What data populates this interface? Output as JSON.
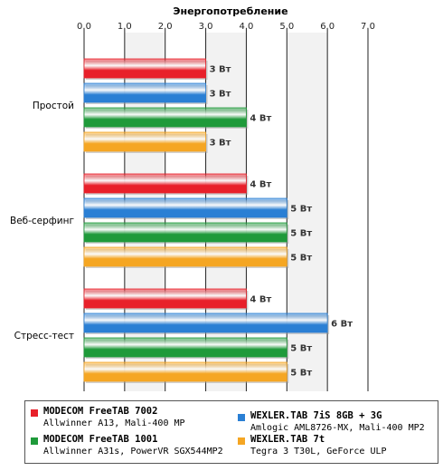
{
  "chart_data": {
    "type": "bar",
    "orientation": "horizontal",
    "title": "Энергопотребление",
    "xlim": [
      0,
      7
    ],
    "x_ticks": [
      "0.0",
      "1.0",
      "2.0",
      "3.0",
      "4.0",
      "5.0",
      "6.0",
      "7.0"
    ],
    "categories": [
      "Простой",
      "Веб-серфинг",
      "Стресс-тест"
    ],
    "value_suffix": "Вт",
    "series": [
      {
        "name": "MODECOM FreeTAB 7002",
        "detail": "Allwinner A13, Mali-400 MP",
        "color": "#e8202a",
        "values": [
          3,
          4,
          4
        ]
      },
      {
        "name": "WEXLER.TAB 7iS 8GB + 3G",
        "detail": "Amlogic AML8726-MX, Mali-400 MP2",
        "color": "#2a7fd4",
        "values": [
          3,
          5,
          6
        ]
      },
      {
        "name": "MODECOM FreeTAB 1001",
        "detail": "Allwinner A31s, PowerVR SGX544MP2",
        "color": "#1f9a3a",
        "values": [
          4,
          5,
          5
        ]
      },
      {
        "name": "WEXLER.TAB 7t",
        "detail": "Tegra 3 T30L, GeForce ULP",
        "color": "#f5a623",
        "values": [
          3,
          5,
          5
        ]
      }
    ],
    "grid": true,
    "legend_position": "bottom"
  }
}
